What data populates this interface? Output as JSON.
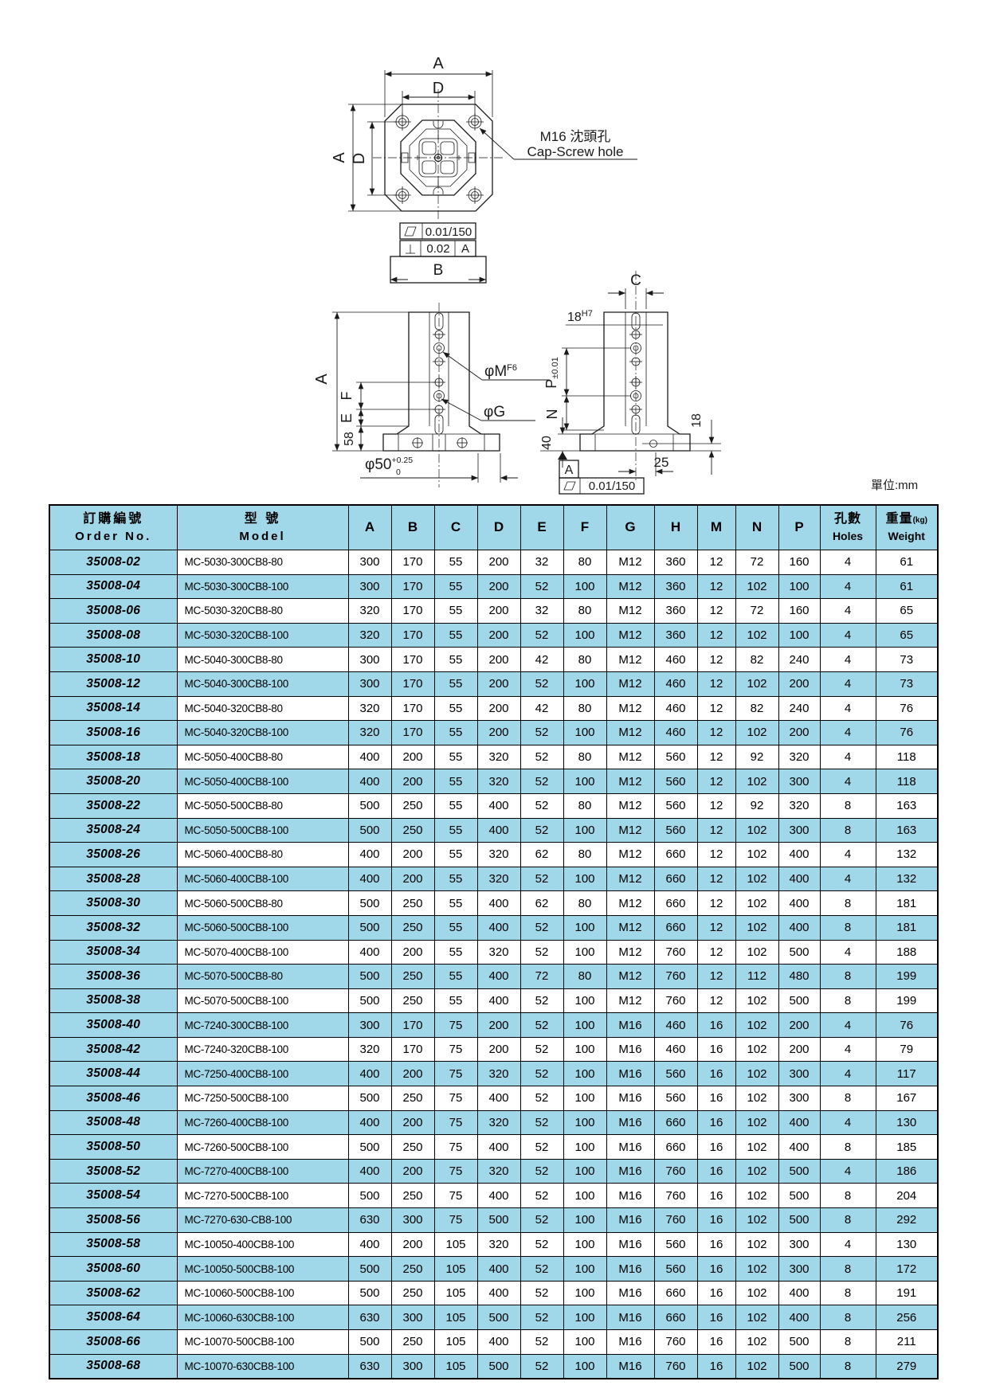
{
  "colors": {
    "table_accent": "#A1D8E9"
  },
  "unit_label": "單位:mm",
  "drawing": {
    "top_view": {
      "dim_a_top": "A",
      "dim_d_top": "D",
      "dim_a_left": "A",
      "dim_d_left": "D"
    },
    "callout": {
      "zh": "M16 沈頭孔",
      "en": "Cap-Screw hole"
    },
    "fcf": {
      "flatness": "0.01/150",
      "perp": "0.02",
      "datum": "A"
    },
    "dim_b": "B",
    "front_view": {
      "dim_a": "A",
      "dim_f": "F",
      "dim_e": "E",
      "dim_58": "58",
      "phi_m": "φM",
      "phi_m_fit": "F6",
      "phi_g": "φG",
      "phi_50": "φ50",
      "phi_50_upper": "+0.25",
      "phi_50_lower": "0"
    },
    "side_view": {
      "dim_c": "C",
      "slot": "18",
      "slot_fit": "H7",
      "dim_p": "P",
      "dim_p_tol": "±0.01",
      "dim_n": "N",
      "dim_40": "40",
      "dim_18": "18",
      "dim_25": "25",
      "datum": "A",
      "flatness": "0.01/150"
    }
  },
  "table": {
    "header": {
      "order_zh": "訂購編號",
      "order_en": "Order No.",
      "model_zh": "型 號",
      "model_en": "Model",
      "dims": [
        "A",
        "B",
        "C",
        "D",
        "E",
        "F",
        "G",
        "H",
        "M",
        "N",
        "P"
      ],
      "holes_zh": "孔數",
      "holes_en": "Holes",
      "weight_zh": "重量",
      "weight_kg": "(kg)",
      "weight_en": "Weight"
    },
    "rows": [
      [
        "35008-02",
        "MC-5030-300CB8-80",
        "300",
        "170",
        "55",
        "200",
        "32",
        "80",
        "M12",
        "360",
        "12",
        "72",
        "160",
        "4",
        "61"
      ],
      [
        "35008-04",
        "MC-5030-300CB8-100",
        "300",
        "170",
        "55",
        "200",
        "52",
        "100",
        "M12",
        "360",
        "12",
        "102",
        "100",
        "4",
        "61"
      ],
      [
        "35008-06",
        "MC-5030-320CB8-80",
        "320",
        "170",
        "55",
        "200",
        "32",
        "80",
        "M12",
        "360",
        "12",
        "72",
        "160",
        "4",
        "65"
      ],
      [
        "35008-08",
        "MC-5030-320CB8-100",
        "320",
        "170",
        "55",
        "200",
        "52",
        "100",
        "M12",
        "360",
        "12",
        "102",
        "100",
        "4",
        "65"
      ],
      [
        "35008-10",
        "MC-5040-300CB8-80",
        "300",
        "170",
        "55",
        "200",
        "42",
        "80",
        "M12",
        "460",
        "12",
        "82",
        "240",
        "4",
        "73"
      ],
      [
        "35008-12",
        "MC-5040-300CB8-100",
        "300",
        "170",
        "55",
        "200",
        "52",
        "100",
        "M12",
        "460",
        "12",
        "102",
        "200",
        "4",
        "73"
      ],
      [
        "35008-14",
        "MC-5040-320CB8-80",
        "320",
        "170",
        "55",
        "200",
        "42",
        "80",
        "M12",
        "460",
        "12",
        "82",
        "240",
        "4",
        "76"
      ],
      [
        "35008-16",
        "MC-5040-320CB8-100",
        "320",
        "170",
        "55",
        "200",
        "52",
        "100",
        "M12",
        "460",
        "12",
        "102",
        "200",
        "4",
        "76"
      ],
      [
        "35008-18",
        "MC-5050-400CB8-80",
        "400",
        "200",
        "55",
        "320",
        "52",
        "80",
        "M12",
        "560",
        "12",
        "92",
        "320",
        "4",
        "118"
      ],
      [
        "35008-20",
        "MC-5050-400CB8-100",
        "400",
        "200",
        "55",
        "320",
        "52",
        "100",
        "M12",
        "560",
        "12",
        "102",
        "300",
        "4",
        "118"
      ],
      [
        "35008-22",
        "MC-5050-500CB8-80",
        "500",
        "250",
        "55",
        "400",
        "52",
        "80",
        "M12",
        "560",
        "12",
        "92",
        "320",
        "8",
        "163"
      ],
      [
        "35008-24",
        "MC-5050-500CB8-100",
        "500",
        "250",
        "55",
        "400",
        "52",
        "100",
        "M12",
        "560",
        "12",
        "102",
        "300",
        "8",
        "163"
      ],
      [
        "35008-26",
        "MC-5060-400CB8-80",
        "400",
        "200",
        "55",
        "320",
        "62",
        "80",
        "M12",
        "660",
        "12",
        "102",
        "400",
        "4",
        "132"
      ],
      [
        "35008-28",
        "MC-5060-400CB8-100",
        "400",
        "200",
        "55",
        "320",
        "52",
        "100",
        "M12",
        "660",
        "12",
        "102",
        "400",
        "4",
        "132"
      ],
      [
        "35008-30",
        "MC-5060-500CB8-80",
        "500",
        "250",
        "55",
        "400",
        "62",
        "80",
        "M12",
        "660",
        "12",
        "102",
        "400",
        "8",
        "181"
      ],
      [
        "35008-32",
        "MC-5060-500CB8-100",
        "500",
        "250",
        "55",
        "400",
        "52",
        "100",
        "M12",
        "660",
        "12",
        "102",
        "400",
        "8",
        "181"
      ],
      [
        "35008-34",
        "MC-5070-400CB8-100",
        "400",
        "200",
        "55",
        "320",
        "52",
        "100",
        "M12",
        "760",
        "12",
        "102",
        "500",
        "4",
        "188"
      ],
      [
        "35008-36",
        "MC-5070-500CB8-80",
        "500",
        "250",
        "55",
        "400",
        "72",
        "80",
        "M12",
        "760",
        "12",
        "112",
        "480",
        "8",
        "199"
      ],
      [
        "35008-38",
        "MC-5070-500CB8-100",
        "500",
        "250",
        "55",
        "400",
        "52",
        "100",
        "M12",
        "760",
        "12",
        "102",
        "500",
        "8",
        "199"
      ],
      [
        "35008-40",
        "MC-7240-300CB8-100",
        "300",
        "170",
        "75",
        "200",
        "52",
        "100",
        "M16",
        "460",
        "16",
        "102",
        "200",
        "4",
        "76"
      ],
      [
        "35008-42",
        "MC-7240-320CB8-100",
        "320",
        "170",
        "75",
        "200",
        "52",
        "100",
        "M16",
        "460",
        "16",
        "102",
        "200",
        "4",
        "79"
      ],
      [
        "35008-44",
        "MC-7250-400CB8-100",
        "400",
        "200",
        "75",
        "320",
        "52",
        "100",
        "M16",
        "560",
        "16",
        "102",
        "300",
        "4",
        "117"
      ],
      [
        "35008-46",
        "MC-7250-500CB8-100",
        "500",
        "250",
        "75",
        "400",
        "52",
        "100",
        "M16",
        "560",
        "16",
        "102",
        "300",
        "8",
        "167"
      ],
      [
        "35008-48",
        "MC-7260-400CB8-100",
        "400",
        "200",
        "75",
        "320",
        "52",
        "100",
        "M16",
        "660",
        "16",
        "102",
        "400",
        "4",
        "130"
      ],
      [
        "35008-50",
        "MC-7260-500CB8-100",
        "500",
        "250",
        "75",
        "400",
        "52",
        "100",
        "M16",
        "660",
        "16",
        "102",
        "400",
        "8",
        "185"
      ],
      [
        "35008-52",
        "MC-7270-400CB8-100",
        "400",
        "200",
        "75",
        "320",
        "52",
        "100",
        "M16",
        "760",
        "16",
        "102",
        "500",
        "4",
        "186"
      ],
      [
        "35008-54",
        "MC-7270-500CB8-100",
        "500",
        "250",
        "75",
        "400",
        "52",
        "100",
        "M16",
        "760",
        "16",
        "102",
        "500",
        "8",
        "204"
      ],
      [
        "35008-56",
        "MC-7270-630-CB8-100",
        "630",
        "300",
        "75",
        "500",
        "52",
        "100",
        "M16",
        "760",
        "16",
        "102",
        "500",
        "8",
        "292"
      ],
      [
        "35008-58",
        "MC-10050-400CB8-100",
        "400",
        "200",
        "105",
        "320",
        "52",
        "100",
        "M16",
        "560",
        "16",
        "102",
        "300",
        "4",
        "130"
      ],
      [
        "35008-60",
        "MC-10050-500CB8-100",
        "500",
        "250",
        "105",
        "400",
        "52",
        "100",
        "M16",
        "560",
        "16",
        "102",
        "300",
        "8",
        "172"
      ],
      [
        "35008-62",
        "MC-10060-500CB8-100",
        "500",
        "250",
        "105",
        "400",
        "52",
        "100",
        "M16",
        "660",
        "16",
        "102",
        "400",
        "8",
        "191"
      ],
      [
        "35008-64",
        "MC-10060-630CB8-100",
        "630",
        "300",
        "105",
        "500",
        "52",
        "100",
        "M16",
        "660",
        "16",
        "102",
        "400",
        "8",
        "256"
      ],
      [
        "35008-66",
        "MC-10070-500CB8-100",
        "500",
        "250",
        "105",
        "400",
        "52",
        "100",
        "M16",
        "760",
        "16",
        "102",
        "500",
        "8",
        "211"
      ],
      [
        "35008-68",
        "MC-10070-630CB8-100",
        "630",
        "300",
        "105",
        "500",
        "52",
        "100",
        "M16",
        "760",
        "16",
        "102",
        "500",
        "8",
        "279"
      ]
    ]
  }
}
